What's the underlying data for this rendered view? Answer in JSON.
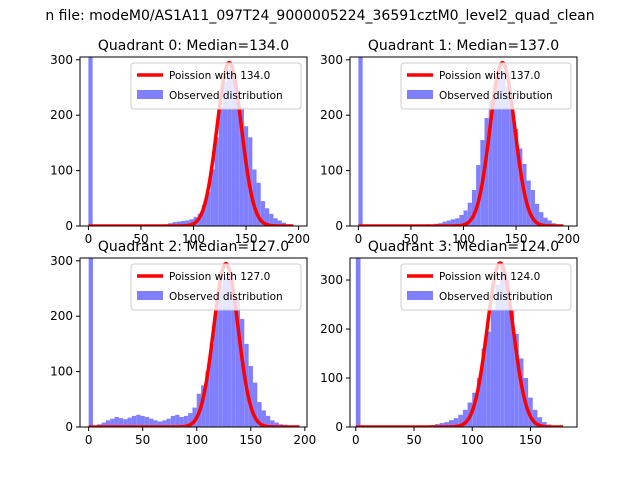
{
  "figure_title": "n file: modeM0/AS1A11_097T24_9000005224_36591cztM0_level2_quad_clean",
  "colors": {
    "observed": "#8080ff",
    "poisson": "#ff0000"
  },
  "chart_data": [
    {
      "type": "bar",
      "title": "Quadrant 0: Median=134.0",
      "median": 134.0,
      "xlim": [
        -8,
        208
      ],
      "ylim": [
        0,
        305
      ],
      "xticks": [
        0,
        50,
        100,
        150,
        200
      ],
      "yticks": [
        0,
        100,
        200,
        300
      ],
      "legend": "top-right",
      "series": [
        {
          "name": "Poission with 134.0",
          "kind": "line",
          "mean": 134.0,
          "peak": 295,
          "sigma": 11.6,
          "x_range": [
            0,
            195
          ]
        },
        {
          "name": "Observed distribution",
          "kind": "histogram",
          "bin_width": 4,
          "bins": [
            [
              0,
              305
            ],
            [
              56,
              2
            ],
            [
              64,
              2
            ],
            [
              72,
              3
            ],
            [
              76,
              5
            ],
            [
              80,
              7
            ],
            [
              84,
              8
            ],
            [
              88,
              9
            ],
            [
              92,
              10
            ],
            [
              96,
              12
            ],
            [
              100,
              16
            ],
            [
              104,
              22
            ],
            [
              108,
              38
            ],
            [
              112,
              62
            ],
            [
              116,
              102
            ],
            [
              120,
              160
            ],
            [
              124,
              215
            ],
            [
              128,
              260
            ],
            [
              132,
              283
            ],
            [
              136,
              272
            ],
            [
              140,
              235
            ],
            [
              144,
              215
            ],
            [
              148,
              180
            ],
            [
              152,
              160
            ],
            [
              156,
              102
            ],
            [
              160,
              78
            ],
            [
              164,
              45
            ],
            [
              168,
              32
            ],
            [
              172,
              22
            ],
            [
              176,
              14
            ],
            [
              180,
              10
            ],
            [
              184,
              6
            ],
            [
              188,
              3
            ]
          ]
        }
      ]
    },
    {
      "type": "bar",
      "title": "Quadrant 1: Median=137.0",
      "median": 137.0,
      "xlim": [
        -8,
        208
      ],
      "ylim": [
        0,
        305
      ],
      "xticks": [
        0,
        50,
        100,
        150,
        200
      ],
      "yticks": [
        0,
        100,
        200,
        300
      ],
      "legend": "top-right",
      "series": [
        {
          "name": "Poission with 137.0",
          "kind": "line",
          "mean": 137.0,
          "peak": 295,
          "sigma": 11.7,
          "x_range": [
            0,
            195
          ]
        },
        {
          "name": "Observed distribution",
          "kind": "histogram",
          "bin_width": 4,
          "bins": [
            [
              0,
              305
            ],
            [
              40,
              2
            ],
            [
              56,
              2
            ],
            [
              64,
              3
            ],
            [
              72,
              4
            ],
            [
              76,
              5
            ],
            [
              80,
              8
            ],
            [
              84,
              10
            ],
            [
              88,
              12
            ],
            [
              92,
              14
            ],
            [
              96,
              20
            ],
            [
              100,
              28
            ],
            [
              104,
              42
            ],
            [
              108,
              65
            ],
            [
              112,
              110
            ],
            [
              116,
              155
            ],
            [
              120,
              195
            ],
            [
              124,
              225
            ],
            [
              128,
              250
            ],
            [
              132,
              280
            ],
            [
              136,
              280
            ],
            [
              140,
              252
            ],
            [
              144,
              222
            ],
            [
              148,
              175
            ],
            [
              152,
              140
            ],
            [
              156,
              112
            ],
            [
              160,
              82
            ],
            [
              164,
              65
            ],
            [
              168,
              40
            ],
            [
              172,
              25
            ],
            [
              176,
              15
            ],
            [
              180,
              10
            ],
            [
              184,
              5
            ],
            [
              188,
              3
            ]
          ]
        }
      ]
    },
    {
      "type": "bar",
      "title": "Quadrant 2: Median=127.0",
      "median": 127.0,
      "xlim": [
        -8,
        202
      ],
      "ylim": [
        0,
        305
      ],
      "xticks": [
        0,
        50,
        100,
        150,
        200
      ],
      "yticks": [
        0,
        100,
        200,
        300
      ],
      "legend": "top-right",
      "series": [
        {
          "name": "Poission with 127.0",
          "kind": "line",
          "mean": 127.0,
          "peak": 295,
          "sigma": 11.3,
          "x_range": [
            0,
            195
          ]
        },
        {
          "name": "Observed distribution",
          "kind": "histogram",
          "bin_width": 4,
          "bins": [
            [
              0,
              305
            ],
            [
              8,
              5
            ],
            [
              12,
              8
            ],
            [
              16,
              12
            ],
            [
              20,
              15
            ],
            [
              24,
              18
            ],
            [
              28,
              16
            ],
            [
              32,
              14
            ],
            [
              36,
              17
            ],
            [
              40,
              20
            ],
            [
              44,
              22
            ],
            [
              48,
              20
            ],
            [
              52,
              18
            ],
            [
              56,
              15
            ],
            [
              60,
              12
            ],
            [
              64,
              10
            ],
            [
              68,
              12
            ],
            [
              72,
              15
            ],
            [
              76,
              20
            ],
            [
              80,
              22
            ],
            [
              84,
              18
            ],
            [
              88,
              20
            ],
            [
              92,
              25
            ],
            [
              96,
              35
            ],
            [
              100,
              60
            ],
            [
              104,
              75
            ],
            [
              108,
              100
            ],
            [
              112,
              150
            ],
            [
              116,
              210
            ],
            [
              120,
              255
            ],
            [
              124,
              270
            ],
            [
              128,
              280
            ],
            [
              132,
              240
            ],
            [
              136,
              230
            ],
            [
              140,
              195
            ],
            [
              144,
              150
            ],
            [
              148,
              110
            ],
            [
              152,
              80
            ],
            [
              156,
              45
            ],
            [
              160,
              30
            ],
            [
              164,
              20
            ],
            [
              168,
              12
            ],
            [
              172,
              8
            ],
            [
              176,
              5
            ],
            [
              180,
              4
            ],
            [
              184,
              3
            ],
            [
              188,
              2
            ]
          ]
        }
      ]
    },
    {
      "type": "bar",
      "title": "Quadrant 3: Median=124.0",
      "median": 124.0,
      "xlim": [
        -5,
        190
      ],
      "ylim": [
        0,
        345
      ],
      "xticks": [
        0,
        50,
        100,
        150
      ],
      "yticks": [
        0,
        100,
        200,
        300
      ],
      "legend": "top-right",
      "series": [
        {
          "name": "Poission with 124.0",
          "kind": "line",
          "mean": 124.0,
          "peak": 335,
          "sigma": 11.1,
          "x_range": [
            0,
            178
          ]
        },
        {
          "name": "Observed distribution",
          "kind": "histogram",
          "bin_width": 4,
          "bins": [
            [
              0,
              345
            ],
            [
              56,
              2
            ],
            [
              64,
              4
            ],
            [
              68,
              6
            ],
            [
              72,
              8
            ],
            [
              76,
              10
            ],
            [
              80,
              14
            ],
            [
              84,
              18
            ],
            [
              88,
              25
            ],
            [
              92,
              35
            ],
            [
              96,
              50
            ],
            [
              100,
              70
            ],
            [
              104,
              100
            ],
            [
              108,
              160
            ],
            [
              112,
              195
            ],
            [
              116,
              240
            ],
            [
              120,
              290
            ],
            [
              124,
              330
            ],
            [
              128,
              300
            ],
            [
              132,
              240
            ],
            [
              136,
              190
            ],
            [
              140,
              140
            ],
            [
              144,
              100
            ],
            [
              148,
              60
            ],
            [
              152,
              35
            ],
            [
              156,
              20
            ],
            [
              160,
              10
            ],
            [
              164,
              5
            ],
            [
              168,
              3
            ]
          ]
        }
      ]
    }
  ]
}
